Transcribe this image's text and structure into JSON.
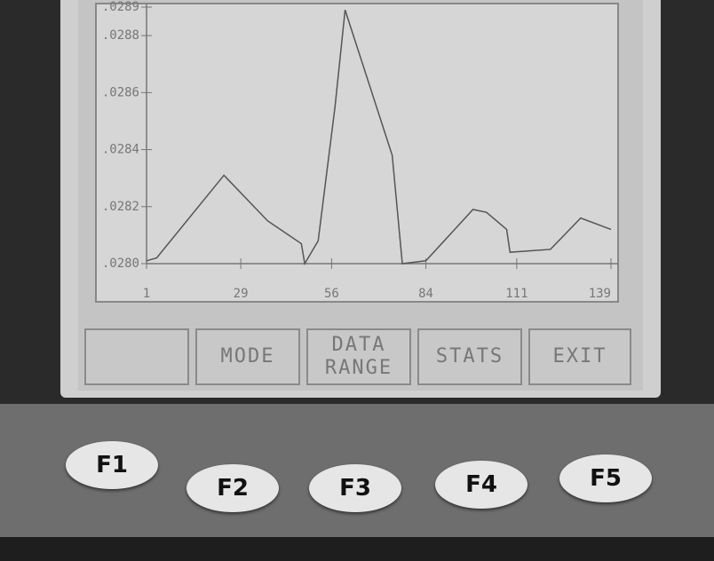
{
  "chart_data": {
    "type": "line",
    "x": [
      1,
      4,
      24,
      37,
      47,
      48,
      52,
      57,
      60,
      74,
      77,
      84,
      98,
      102,
      108,
      109,
      121,
      130,
      139
    ],
    "values": [
      0.02801,
      0.02802,
      0.02831,
      0.02815,
      0.02807,
      0.028,
      0.02808,
      0.02855,
      0.02889,
      0.02838,
      0.028,
      0.02801,
      0.02819,
      0.02818,
      0.02812,
      0.02804,
      0.02805,
      0.02816,
      0.02812
    ],
    "color": "#555555",
    "xlim": [
      1,
      139
    ],
    "xticks": [
      1,
      29,
      56,
      84,
      111,
      139
    ],
    "ylim": [
      0.028,
      0.0289
    ],
    "yticks": [
      {
        "value": 0.028,
        "label": ".0280"
      },
      {
        "value": 0.0282,
        "label": ".0282"
      },
      {
        "value": 0.0284,
        "label": ".0284"
      },
      {
        "value": 0.0286,
        "label": ".0286"
      },
      {
        "value": 0.0288,
        "label": ".0288"
      },
      {
        "value": 0.0289,
        "label": ".0289"
      }
    ]
  },
  "softkeys": [
    "MODE",
    "DATA RANGE",
    "STATS",
    "EXIT"
  ],
  "keys": [
    "F1",
    "F2",
    "F3",
    "F4",
    "F5"
  ]
}
